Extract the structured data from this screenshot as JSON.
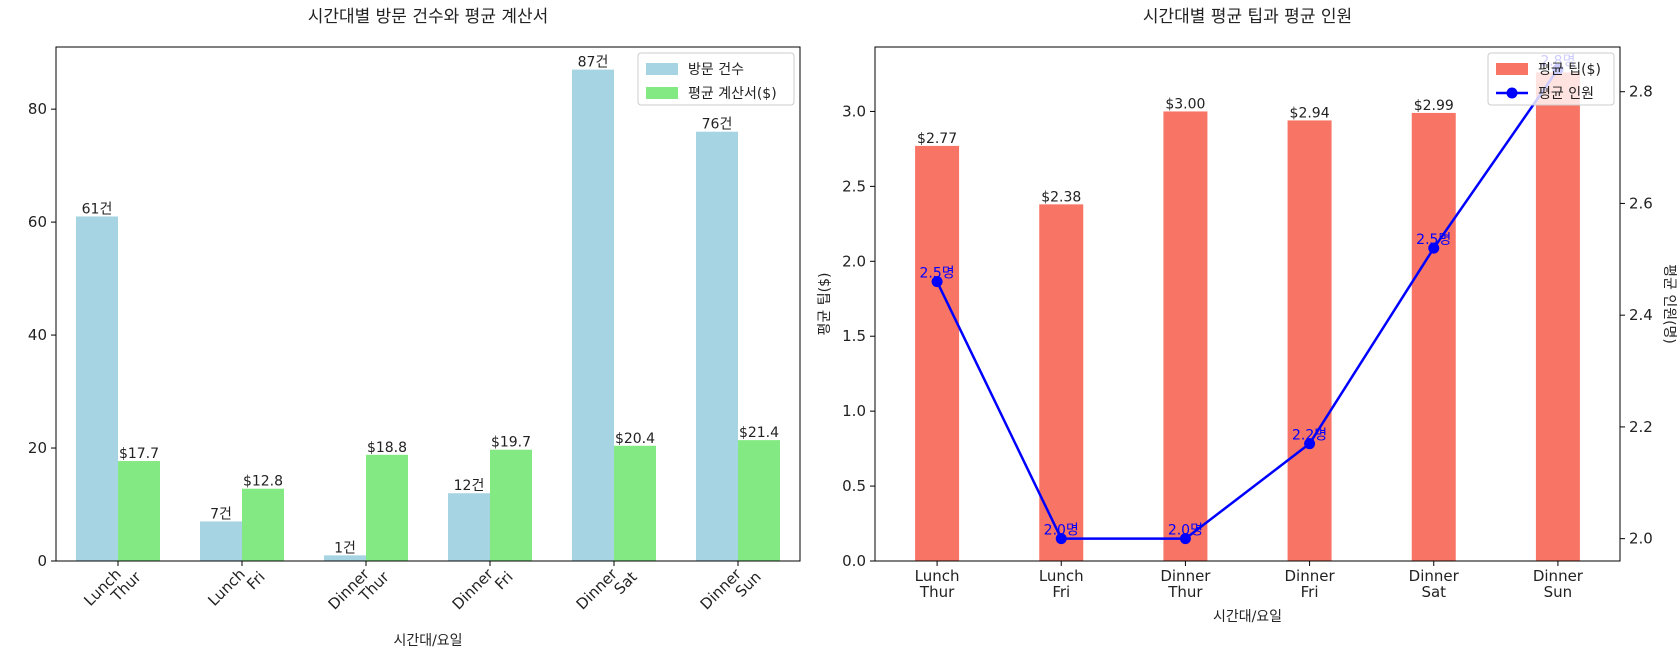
{
  "chart_data": [
    {
      "type": "bar",
      "title": "시간대별 방문 건수와 평균 계산서",
      "xlabel": "시간대/요일",
      "ylabel": "",
      "ylim": [
        0,
        91
      ],
      "yticks": [
        0,
        20,
        40,
        60,
        80
      ],
      "categories": [
        "Lunch\nThur",
        "Lunch\nFri",
        "Dinner\nThur",
        "Dinner\nFri",
        "Dinner\nSat",
        "Dinner\nSun"
      ],
      "series": [
        {
          "name": "방문 건수",
          "values": [
            61,
            7,
            1,
            12,
            87,
            76
          ],
          "labels": [
            "61건",
            "7건",
            "1건",
            "12건",
            "87건",
            "76건"
          ],
          "color": "#a6d4e3"
        },
        {
          "name": "평균 계산서($)",
          "values": [
            17.7,
            12.8,
            18.8,
            19.7,
            20.4,
            21.4
          ],
          "labels": [
            "$17.7",
            "$12.8",
            "$18.8",
            "$19.7",
            "$20.4",
            "$21.4"
          ],
          "color": "#83e982"
        }
      ],
      "legend": "top-right",
      "grid": false
    },
    {
      "type": "bar",
      "title": "시간대별 평균 팁과 평균 인원",
      "xlabel": "시간대/요일",
      "ylabel": "평균 팁($)",
      "ylim": [
        0,
        3.43
      ],
      "yticks": [
        0.0,
        0.5,
        1.0,
        1.5,
        2.0,
        2.5,
        3.0
      ],
      "categories": [
        "Lunch\nThur",
        "Lunch\nFri",
        "Dinner\nThur",
        "Dinner\nFri",
        "Dinner\nSat",
        "Dinner\nSun"
      ],
      "series": [
        {
          "name": "평균 팁($)",
          "type": "bar",
          "values": [
            2.77,
            2.38,
            3.0,
            2.94,
            2.99,
            3.26
          ],
          "labels": [
            "$2.77",
            "$2.38",
            "$3.00",
            "$2.94",
            "$2.99",
            ""
          ],
          "color": "#f87465"
        },
        {
          "name": "평균 인원",
          "type": "line",
          "axis": "right",
          "values": [
            2.46,
            2.0,
            2.0,
            2.17,
            2.52,
            2.84
          ],
          "labels": [
            "2.5명",
            "2.0명",
            "2.0명",
            "2.2명",
            "2.5명",
            "2.8명"
          ],
          "color": "#0000ff"
        }
      ],
      "y2label": "평균 인원(명)",
      "y2lim": [
        1.96,
        2.88
      ],
      "y2ticks": [
        2.0,
        2.2,
        2.4,
        2.6,
        2.8
      ],
      "legend": "top-right",
      "grid": false
    }
  ]
}
